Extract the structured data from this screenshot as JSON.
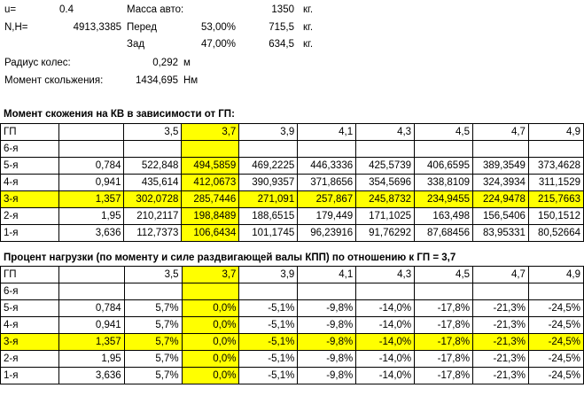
{
  "top": {
    "u_label": "u=",
    "u_value": "0.4",
    "mass_label": "Масса авто:",
    "mass_value": "1350",
    "mass_unit": "кг.",
    "nh_label": "N,H=",
    "nh_value": "4913,3385",
    "front_label": "Перед",
    "front_pct": "53,00%",
    "front_value": "715,5",
    "front_unit": "кг.",
    "rear_label": "Зад",
    "rear_pct": "47,00%",
    "rear_value": "634,5",
    "rear_unit": "кг.",
    "radius_label": "Радиус колес:",
    "radius_value": "0,292",
    "radius_unit": "м",
    "moment_label": "Момент скольжения:",
    "moment_value": "1434,695",
    "moment_unit": "Нм"
  },
  "table1": {
    "title": "Момент скожения на КВ в зависимости от ГП:",
    "header": [
      "ГП",
      "",
      "3,5",
      "3,7",
      "3,9",
      "4,1",
      "4,3",
      "4,5",
      "4,7",
      "4,9"
    ],
    "rows": [
      [
        "6-я",
        "",
        "",
        "",
        "",
        "",
        "",
        "",
        "",
        ""
      ],
      [
        "5-я",
        "0,784",
        "522,848",
        "494,5859",
        "469,2225",
        "446,3336",
        "425,5739",
        "406,6595",
        "389,3549",
        "373,4628"
      ],
      [
        "4-я",
        "0,941",
        "435,614",
        "412,0673",
        "390,9357",
        "371,8656",
        "354,5696",
        "338,8109",
        "324,3934",
        "311,1529"
      ],
      [
        "3-я",
        "1,357",
        "302,0728",
        "285,7446",
        "271,091",
        "257,867",
        "245,8732",
        "234,9455",
        "224,9478",
        "215,7663"
      ],
      [
        "2-я",
        "1,95",
        "210,2117",
        "198,8489",
        "188,6515",
        "179,449",
        "171,1025",
        "163,498",
        "156,5406",
        "150,1512"
      ],
      [
        "1-я",
        "3,636",
        "112,7373",
        "106,6434",
        "101,1745",
        "96,23916",
        "91,76292",
        "87,68456",
        "83,95331",
        "80,52664"
      ]
    ]
  },
  "table2": {
    "title": "Процент нагрузки (по моменту и силе раздвигающей валы КПП) по отношению к ГП = 3,7",
    "header": [
      "ГП",
      "",
      "3,5",
      "3,7",
      "3,9",
      "4,1",
      "4,3",
      "4,5",
      "4,7",
      "4,9"
    ],
    "rows": [
      [
        "6-я",
        "",
        "",
        "",
        "",
        "",
        "",
        "",
        "",
        ""
      ],
      [
        "5-я",
        "0,784",
        "5,7%",
        "0,0%",
        "-5,1%",
        "-9,8%",
        "-14,0%",
        "-17,8%",
        "-21,3%",
        "-24,5%"
      ],
      [
        "4-я",
        "0,941",
        "5,7%",
        "0,0%",
        "-5,1%",
        "-9,8%",
        "-14,0%",
        "-17,8%",
        "-21,3%",
        "-24,5%"
      ],
      [
        "3-я",
        "1,357",
        "5,7%",
        "0,0%",
        "-5,1%",
        "-9,8%",
        "-14,0%",
        "-17,8%",
        "-21,3%",
        "-24,5%"
      ],
      [
        "2-я",
        "1,95",
        "5,7%",
        "0,0%",
        "-5,1%",
        "-9,8%",
        "-14,0%",
        "-17,8%",
        "-21,3%",
        "-24,5%"
      ],
      [
        "1-я",
        "3,636",
        "5,7%",
        "0,0%",
        "-5,1%",
        "-9,8%",
        "-14,0%",
        "-17,8%",
        "-21,3%",
        "-24,5%"
      ]
    ]
  },
  "highlight": {
    "color": "#ffff00",
    "row_label": "3-я",
    "column_label": "3,7"
  }
}
